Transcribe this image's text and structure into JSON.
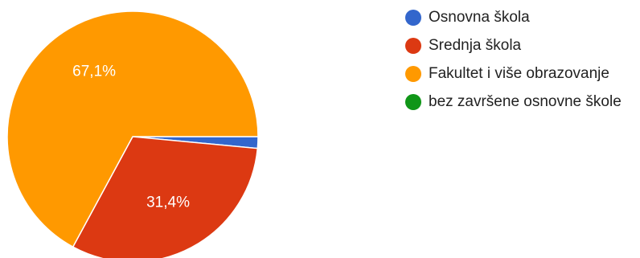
{
  "chart_data": {
    "type": "pie",
    "title": "",
    "categories": [
      "Osnovna škola",
      "Srednja škola",
      "Fakultet i više obrazovanje",
      "bez završene osnovne škole"
    ],
    "values": [
      1.5,
      31.4,
      67.1,
      0
    ],
    "data_labels": [
      "",
      "31,4%",
      "67,1%",
      ""
    ],
    "colors": [
      "#3366cc",
      "#dc3912",
      "#ff9900",
      "#109618"
    ],
    "legend_placement": "right"
  }
}
